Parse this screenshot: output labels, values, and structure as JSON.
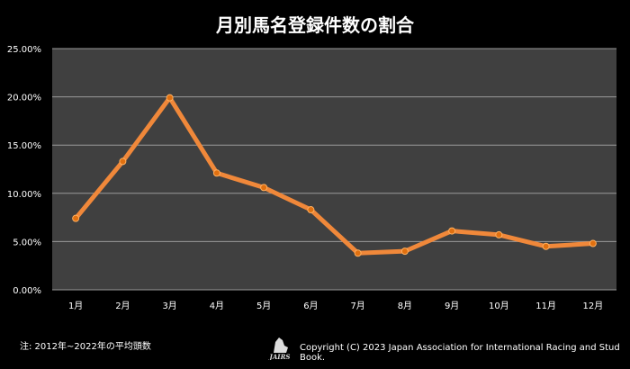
{
  "chart_data": {
    "type": "line",
    "title": "月別馬名登録件数の割合",
    "categories": [
      "1月",
      "2月",
      "3月",
      "4月",
      "5月",
      "6月",
      "7月",
      "8月",
      "9月",
      "10月",
      "11月",
      "12月"
    ],
    "values": [
      7.4,
      13.3,
      19.9,
      12.1,
      10.6,
      8.3,
      3.8,
      4.0,
      6.1,
      5.7,
      4.5,
      4.8
    ],
    "unit": "%",
    "ylim": [
      0,
      25
    ],
    "yticks": [
      "0.00%",
      "5.00%",
      "10.00%",
      "15.00%",
      "20.00%",
      "25.00%"
    ],
    "grid": true,
    "line_color": "#f0883a",
    "plot_bg": "#404040"
  },
  "footer": {
    "note": "注: 2012年~2022年の平均頭数",
    "copyright": "Copyright (C) 2023 Japan Association for International Racing and Stud Book.",
    "logo_text": "JAIRS"
  }
}
